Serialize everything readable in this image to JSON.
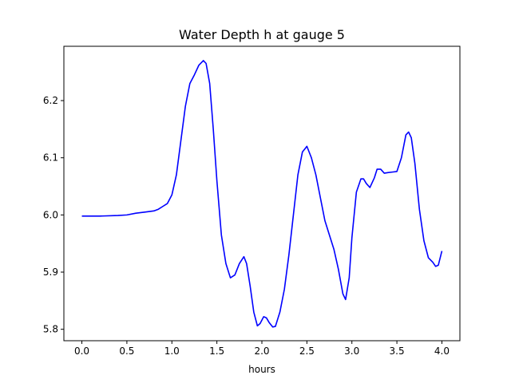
{
  "chart_data": {
    "type": "line",
    "title": "Water Depth h at gauge 5",
    "xlabel": "hours",
    "ylabel": "",
    "xlim": [
      -0.2,
      4.2
    ],
    "ylim": [
      5.78,
      6.295
    ],
    "xticks": [
      0.0,
      0.5,
      1.0,
      1.5,
      2.0,
      2.5,
      3.0,
      3.5,
      4.0
    ],
    "xtick_labels": [
      "0.0",
      "0.5",
      "1.0",
      "1.5",
      "2.0",
      "2.5",
      "3.0",
      "3.5",
      "4.0"
    ],
    "yticks": [
      5.8,
      5.9,
      6.0,
      6.1,
      6.2
    ],
    "ytick_labels": [
      "5.8",
      "5.9",
      "6.0",
      "6.1",
      "6.2"
    ],
    "grid": false,
    "legend": "none",
    "series": [
      {
        "color": "#0000ff",
        "x": [
          0.0,
          0.2,
          0.4,
          0.5,
          0.6,
          0.7,
          0.8,
          0.85,
          0.9,
          0.95,
          1.0,
          1.05,
          1.1,
          1.15,
          1.2,
          1.25,
          1.3,
          1.35,
          1.38,
          1.42,
          1.46,
          1.5,
          1.55,
          1.6,
          1.65,
          1.7,
          1.75,
          1.8,
          1.83,
          1.87,
          1.91,
          1.95,
          1.98,
          2.02,
          2.05,
          2.08,
          2.12,
          2.15,
          2.2,
          2.25,
          2.3,
          2.35,
          2.4,
          2.45,
          2.5,
          2.55,
          2.6,
          2.65,
          2.7,
          2.75,
          2.8,
          2.85,
          2.9,
          2.93,
          2.97,
          3.0,
          3.05,
          3.1,
          3.13,
          3.16,
          3.2,
          3.25,
          3.28,
          3.32,
          3.36,
          3.4,
          3.45,
          3.5,
          3.55,
          3.6,
          3.63,
          3.66,
          3.7,
          3.75,
          3.8,
          3.85,
          3.9,
          3.93,
          3.96,
          4.0
        ],
        "y": [
          5.998,
          5.998,
          5.999,
          6.0,
          6.003,
          6.005,
          6.007,
          6.01,
          6.015,
          6.02,
          6.035,
          6.07,
          6.13,
          6.19,
          6.23,
          6.245,
          6.262,
          6.27,
          6.265,
          6.23,
          6.15,
          6.06,
          5.965,
          5.915,
          5.89,
          5.895,
          5.915,
          5.927,
          5.915,
          5.875,
          5.83,
          5.806,
          5.81,
          5.822,
          5.82,
          5.812,
          5.804,
          5.805,
          5.83,
          5.87,
          5.93,
          6.0,
          6.07,
          6.11,
          6.12,
          6.1,
          6.07,
          6.03,
          5.99,
          5.965,
          5.94,
          5.905,
          5.862,
          5.852,
          5.89,
          5.96,
          6.04,
          6.063,
          6.063,
          6.055,
          6.048,
          6.065,
          6.08,
          6.08,
          6.073,
          6.074,
          6.075,
          6.076,
          6.1,
          6.14,
          6.145,
          6.135,
          6.09,
          6.01,
          5.955,
          5.925,
          5.917,
          5.91,
          5.912,
          5.937
        ]
      }
    ]
  }
}
